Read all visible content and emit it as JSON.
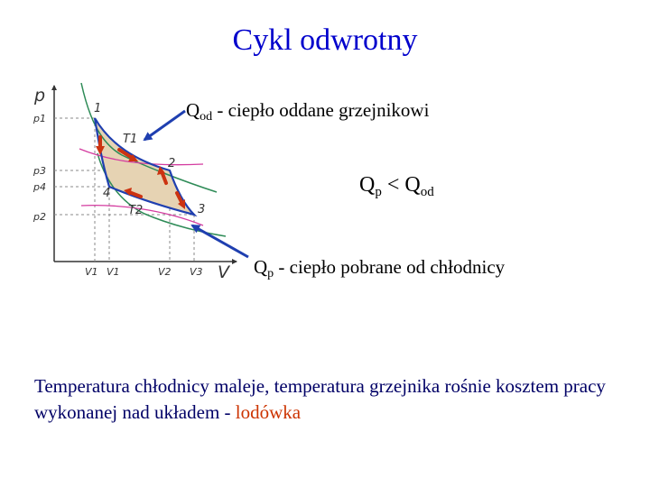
{
  "title": "Cykl odwrotny",
  "annotations": {
    "q_od": {
      "symbol": "Q",
      "sub": "od",
      "text": " - ciepło oddane grzejnikowi"
    },
    "q_p": {
      "symbol": "Q",
      "sub": "p",
      "text": " - ciepło pobrane od chłodnicy"
    },
    "inequality": {
      "left": "Q",
      "left_sub": "p",
      "op": "<",
      "right": "Q",
      "right_sub": "od"
    }
  },
  "conclusion": {
    "main": "Temperatura chłodnicy maleje, temperatura grzejnika rośnie kosztem pracy wykonanej nad układem - ",
    "highlight": "lodówka"
  },
  "diagram": {
    "axes": {
      "y": "p",
      "x": "V"
    },
    "pressure_ticks": [
      "p1",
      "p3",
      "p4",
      "p2"
    ],
    "volume_ticks": [
      "V1",
      "V1",
      "V2",
      "V3"
    ],
    "points": [
      "1",
      "2",
      "3",
      "4"
    ],
    "isotherms": [
      "T1",
      "T2"
    ],
    "colors": {
      "cycle_outline": "#1f3fb0",
      "cycle_fill": "#e6d3b3",
      "isotherm_green": "#2e8b57",
      "adiabat_magenta": "#d43ca0",
      "flow_arrow": "#cc3311",
      "pointer_arrow": "#1f3fb0",
      "title": "#0000cc",
      "accent": "#cc3300"
    }
  }
}
